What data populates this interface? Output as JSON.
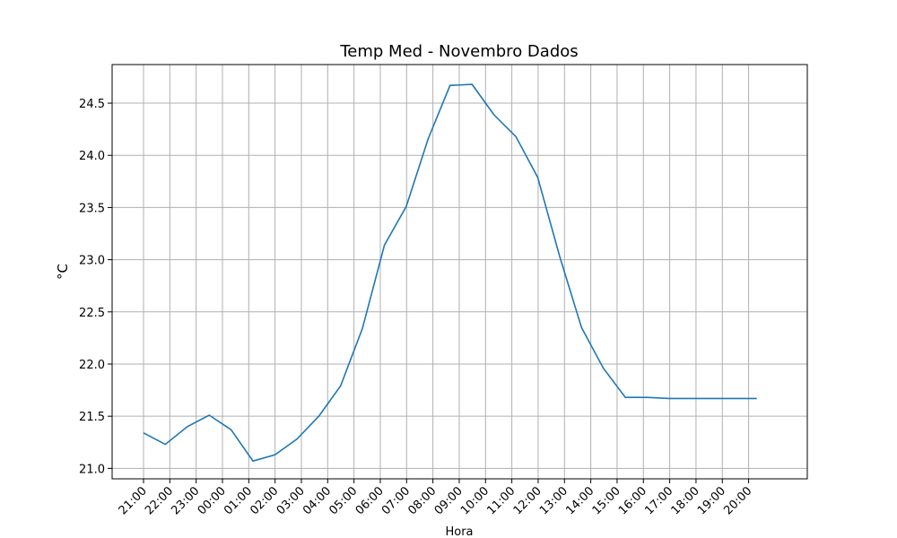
{
  "chart_data": {
    "type": "line",
    "title": "Temp Med - Novembro Dados",
    "xlabel": "Hora",
    "ylabel": "°C",
    "x_tick_labels": [
      "21:00",
      "22:00",
      "23:00",
      "00:00",
      "01:00",
      "02:00",
      "03:00",
      "04:00",
      "05:00",
      "06:00",
      "07:00",
      "08:00",
      "09:00",
      "10:00",
      "11:00",
      "12:00",
      "13:00",
      "14:00",
      "15:00",
      "16:00",
      "17:00",
      "18:00",
      "19:00",
      "20:00"
    ],
    "y_ticks": [
      "21.0",
      "21.5",
      "22.0",
      "22.5",
      "23.0",
      "23.5",
      "24.0",
      "24.5"
    ],
    "ylim": [
      20.9,
      24.87
    ],
    "grid": true,
    "line_color": "#1f77b4",
    "series": [
      {
        "x": [
          0,
          1.03,
          2.07,
          3.1,
          4.14,
          5.17,
          6.21,
          7.24,
          8.28,
          9.31,
          10.34,
          11.38,
          12.41,
          13.45,
          14.48,
          15.52,
          16.55,
          17.59,
          18.62,
          19.66,
          20.69,
          21.72,
          22.76,
          23.79,
          24.83,
          25.86,
          26.9,
          27.93,
          28.97,
          30
        ],
        "values": [
          21.34,
          21.23,
          21.4,
          21.51,
          21.37,
          21.07,
          21.13,
          21.28,
          21.5,
          21.79,
          22.34,
          23.14,
          23.51,
          24.16,
          24.67,
          24.68,
          24.39,
          24.18,
          23.79,
          23.03,
          22.35,
          21.96,
          21.68,
          21.68,
          21.67,
          21.67,
          21.67,
          21.67,
          21.67,
          21.67
        ]
      }
    ]
  }
}
